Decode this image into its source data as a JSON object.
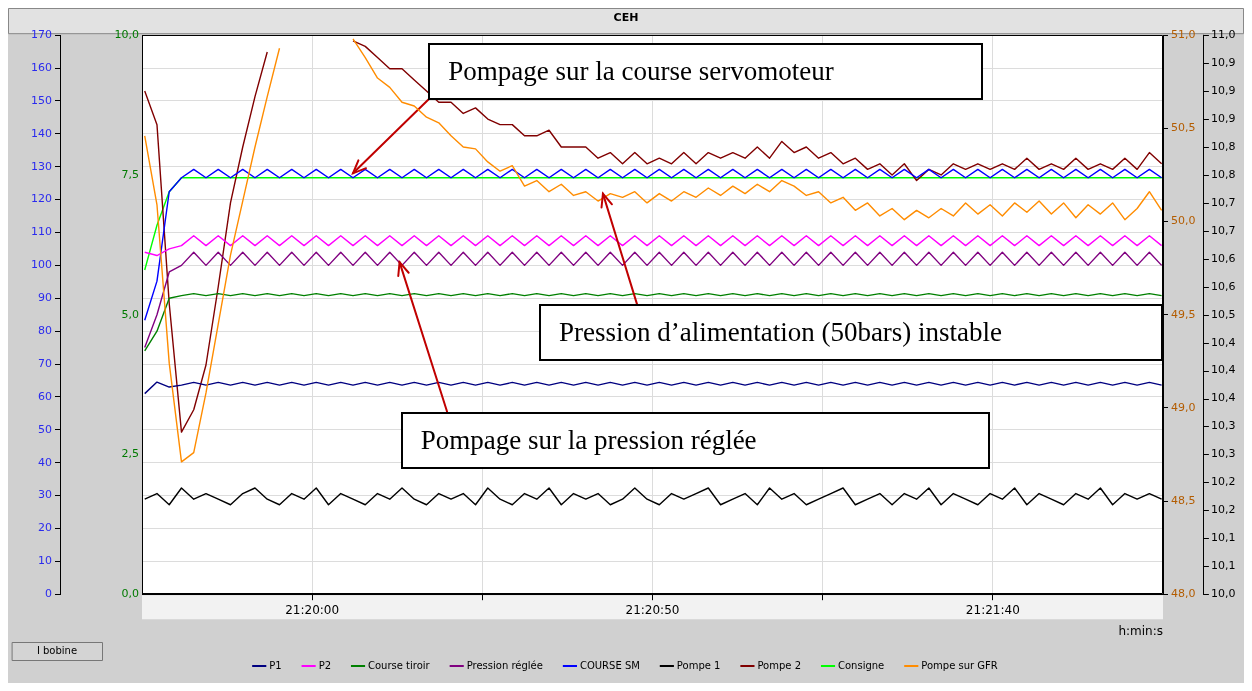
{
  "chart_data": [
    {
      "type": "line",
      "title": "CEH",
      "xlabel": "h:min:s",
      "annotations": [
        {
          "text": "Pompage sur la course servomoteur",
          "x": 21.335,
          "y": 128
        },
        {
          "text": "Pompage sur la pression réglée",
          "x": 21.3369,
          "y": 101
        },
        "I bobine"
      ],
      "xlim": [
        21.326389,
        21.368056
      ],
      "xticks": [
        {
          "value": 21.333333,
          "label": "21:20:00"
        },
        {
          "value": 21.340278,
          "label": null
        },
        {
          "value": 21.347222,
          "label": "21:20:50"
        },
        {
          "value": 21.354167,
          "label": null
        },
        {
          "value": 21.361111,
          "label": "21:21:40"
        }
      ],
      "ylim": [
        0,
        170
      ],
      "yticks": [
        0,
        10,
        20,
        30,
        40,
        50,
        60,
        70,
        80,
        90,
        100,
        110,
        120,
        130,
        140,
        150,
        160,
        170
      ],
      "y2lim": [
        0,
        10
      ],
      "y2ticks": [
        {
          "value": 0,
          "label": "0,0"
        },
        {
          "value": 2.5,
          "label": "2,5"
        },
        {
          "value": 5,
          "label": "5,0"
        },
        {
          "value": 7.5,
          "label": "7,5"
        },
        {
          "value": 10,
          "label": "10,0"
        }
      ],
      "y3lim": [
        10,
        11
      ],
      "y3ticks": [
        {
          "value": 10,
          "label": "10,0"
        },
        {
          "value": 10.05,
          "label": "10,1"
        },
        {
          "value": 10.1,
          "label": "10,1"
        },
        {
          "value": 10.15,
          "label": "10,2"
        },
        {
          "value": 10.2,
          "label": "10,2"
        },
        {
          "value": 10.25,
          "label": "10,3"
        },
        {
          "value": 10.3,
          "label": "10,3"
        },
        {
          "value": 10.35,
          "label": "10,4"
        },
        {
          "value": 10.4,
          "label": "10,4"
        },
        {
          "value": 10.45,
          "label": "10,4"
        },
        {
          "value": 10.5,
          "label": "10,5"
        },
        {
          "value": 10.55,
          "label": "10,6"
        },
        {
          "value": 10.6,
          "label": "10,6"
        },
        {
          "value": 10.65,
          "label": "10,7"
        },
        {
          "value": 10.7,
          "label": "10,7"
        },
        {
          "value": 10.75,
          "label": "10,8"
        },
        {
          "value": 10.8,
          "label": "10,8"
        },
        {
          "value": 10.85,
          "label": "10,9"
        },
        {
          "value": 10.9,
          "label": "10,9"
        },
        {
          "value": 10.95,
          "label": "10,9"
        },
        {
          "value": 11,
          "label": "11,0"
        }
      ],
      "grid": true,
      "legend": "bottom",
      "marker": "none",
      "line_style": "solid",
      "x": [
        21.3265,
        21.327,
        21.3275,
        21.328,
        21.3285,
        21.329,
        21.3295,
        21.33,
        21.3305,
        21.331,
        21.3315,
        21.332,
        21.3325,
        21.333,
        21.3335,
        21.334,
        21.3345,
        21.335,
        21.3355,
        21.336,
        21.3365,
        21.337,
        21.3375,
        21.338,
        21.3385,
        21.339,
        21.3395,
        21.34,
        21.3405,
        21.341,
        21.3415,
        21.342,
        21.3425,
        21.343,
        21.3435,
        21.344,
        21.3445,
        21.345,
        21.3455,
        21.346,
        21.3465,
        21.347,
        21.3475,
        21.348,
        21.3485,
        21.349,
        21.3495,
        21.35,
        21.3505,
        21.351,
        21.3515,
        21.352,
        21.3525,
        21.353,
        21.3535,
        21.354,
        21.3545,
        21.355,
        21.3555,
        21.356,
        21.3565,
        21.357,
        21.3575,
        21.358,
        21.3585,
        21.359,
        21.3595,
        21.36,
        21.3605,
        21.361,
        21.3615,
        21.362,
        21.3625,
        21.363,
        21.3635,
        21.364,
        21.3645,
        21.365,
        21.3655,
        21.366,
        21.3665,
        21.367,
        21.3675,
        21.368
      ],
      "series": [
        {
          "name": "P1",
          "color": "#000080",
          "values": [
            61,
            64.5,
            63,
            63.6,
            64.4,
            63.6,
            64.4,
            63.6,
            64.4,
            63.6,
            64.4,
            63.6,
            64.4,
            63.6,
            64.4,
            63.6,
            64.4,
            63.6,
            64.4,
            63.6,
            64.4,
            63.6,
            64.4,
            63.6,
            64.4,
            63.6,
            64.4,
            63.6,
            64.4,
            63.6,
            64.4,
            63.6,
            64.4,
            63.6,
            64.4,
            63.6,
            64.4,
            63.6,
            64.4,
            63.6,
            64.4,
            63.6,
            64.4,
            63.6,
            64.4,
            63.6,
            64.4,
            63.6,
            64.4,
            63.6,
            64.4,
            63.6,
            64.4,
            63.6,
            64.4,
            63.6,
            64.4,
            63.6,
            64.4,
            63.6,
            64.4,
            63.6,
            64.4,
            63.6,
            64.4,
            63.6,
            64.4,
            63.6,
            64.4,
            63.6,
            64.4,
            63.6,
            64.4,
            63.6,
            64.4,
            63.6,
            64.4,
            63.6,
            64.4,
            63.6,
            64.4,
            63.6,
            64.4,
            63.6
          ]
        },
        {
          "name": "P2",
          "color": "#ff00ff",
          "values": [
            104,
            103,
            105,
            106,
            109,
            106,
            109,
            106,
            109,
            106,
            109,
            106,
            109,
            106,
            109,
            106,
            109,
            106,
            109,
            106,
            109,
            106,
            109,
            106,
            109,
            106,
            109,
            106,
            109,
            106,
            109,
            106,
            109,
            106,
            109,
            106,
            109,
            106,
            109,
            106,
            109,
            106,
            109,
            106,
            109,
            106,
            109,
            106,
            109,
            106,
            109,
            106,
            109,
            106,
            109,
            106,
            109,
            106,
            109,
            106,
            109,
            106,
            109,
            106,
            109,
            106,
            109,
            106,
            109,
            106,
            109,
            106,
            109,
            106,
            109,
            106,
            109,
            106,
            109,
            106,
            109,
            106,
            109,
            106
          ]
        },
        {
          "name": "Course tiroir",
          "color": "#008000",
          "values": [
            74,
            80,
            90,
            90.8,
            91.4,
            90.8,
            91.4,
            90.8,
            91.4,
            90.8,
            91.4,
            90.8,
            91.4,
            90.8,
            91.4,
            90.8,
            91.4,
            90.8,
            91.4,
            90.8,
            91.4,
            90.8,
            91.4,
            90.8,
            91.4,
            90.8,
            91.4,
            90.8,
            91.4,
            90.8,
            91.4,
            90.8,
            91.4,
            90.8,
            91.4,
            90.8,
            91.4,
            90.8,
            91.4,
            90.8,
            91.4,
            90.8,
            91.4,
            90.8,
            91.4,
            90.8,
            91.4,
            90.8,
            91.4,
            90.8,
            91.4,
            90.8,
            91.4,
            90.8,
            91.4,
            90.8,
            91.4,
            90.8,
            91.4,
            90.8,
            91.4,
            90.8,
            91.4,
            90.8,
            91.4,
            90.8,
            91.4,
            90.8,
            91.4,
            90.8,
            91.4,
            90.8,
            91.4,
            90.8,
            91.4,
            90.8,
            91.4,
            90.8,
            91.4,
            90.8,
            91.4,
            90.8,
            91.4,
            90.8
          ]
        },
        {
          "name": "Pression réglée",
          "color": "#800080",
          "values": [
            75,
            85,
            98,
            100,
            104,
            100,
            104,
            100,
            104,
            100,
            104,
            100,
            104,
            100,
            104,
            100,
            104,
            100,
            104,
            100,
            104,
            100,
            104,
            100,
            104,
            100,
            104,
            100,
            104,
            100,
            104,
            100,
            104,
            100,
            104,
            100,
            104,
            100,
            104,
            100,
            104,
            100,
            104,
            100,
            104,
            100,
            104,
            100,
            104,
            100,
            104,
            100,
            104,
            100,
            104,
            100,
            104,
            100,
            104,
            100,
            104,
            100,
            104,
            100,
            104,
            100,
            104,
            100,
            104,
            100,
            104,
            100,
            104,
            100,
            104,
            100,
            104,
            100,
            104,
            100,
            104,
            100,
            104,
            100
          ]
        },
        {
          "name": "COURSE SM",
          "color": "#0000ff",
          "axis": "y2",
          "values": [
            4.9,
            5.6,
            7.2,
            7.45,
            7.6,
            7.45,
            7.6,
            7.45,
            7.6,
            7.45,
            7.6,
            7.45,
            7.6,
            7.45,
            7.6,
            7.45,
            7.6,
            7.45,
            7.6,
            7.45,
            7.6,
            7.45,
            7.6,
            7.45,
            7.6,
            7.45,
            7.6,
            7.45,
            7.6,
            7.45,
            7.6,
            7.45,
            7.6,
            7.45,
            7.6,
            7.45,
            7.6,
            7.45,
            7.6,
            7.45,
            7.6,
            7.45,
            7.6,
            7.45,
            7.6,
            7.45,
            7.6,
            7.45,
            7.6,
            7.45,
            7.6,
            7.45,
            7.6,
            7.45,
            7.6,
            7.45,
            7.6,
            7.45,
            7.6,
            7.45,
            7.6,
            7.45,
            7.6,
            7.45,
            7.6,
            7.45,
            7.6,
            7.45,
            7.6,
            7.45,
            7.6,
            7.45,
            7.6,
            7.45,
            7.6,
            7.45,
            7.6,
            7.45,
            7.6,
            7.45,
            7.6,
            7.45,
            7.6,
            7.45
          ]
        },
        {
          "name": "Pompe 1",
          "color": "#000000",
          "axis": "y3",
          "values": [
            10.17,
            10.18,
            10.16,
            10.19,
            10.17,
            10.18,
            10.17,
            10.16,
            10.18,
            10.19,
            10.17,
            10.16,
            10.18,
            10.17,
            10.19,
            10.16,
            10.18,
            10.17,
            10.16,
            10.18,
            10.17,
            10.19,
            10.17,
            10.16,
            10.18,
            10.17,
            10.18,
            10.16,
            10.19,
            10.17,
            10.16,
            10.18,
            10.17,
            10.19,
            10.16,
            10.18,
            10.17,
            10.18,
            10.16,
            10.17,
            10.19,
            10.17,
            10.16,
            10.18,
            10.17,
            10.18,
            10.19,
            10.16,
            10.17,
            10.18,
            10.16,
            10.19,
            10.17,
            10.18,
            10.16,
            10.17,
            10.18,
            10.19,
            10.16,
            10.17,
            10.18,
            10.16,
            10.18,
            10.17,
            10.19,
            10.16,
            10.18,
            10.17,
            10.16,
            10.18,
            10.17,
            10.19,
            10.16,
            10.18,
            10.17,
            10.16,
            10.18,
            10.17,
            10.19,
            10.16,
            10.18,
            10.17,
            10.18,
            10.17
          ]
        },
        {
          "name": "Pompe 2",
          "color": "#800000",
          "axis": "y3",
          "values": [
            10.9,
            10.84,
            10.52,
            10.29,
            10.33,
            10.41,
            10.55,
            10.7,
            10.8,
            10.89,
            10.97,
            null,
            null,
            null,
            null,
            null,
            null,
            10.99,
            10.98,
            10.96,
            10.94,
            10.94,
            10.92,
            10.9,
            10.88,
            10.88,
            10.86,
            10.87,
            10.85,
            10.84,
            10.84,
            10.82,
            10.82,
            10.83,
            10.8,
            10.8,
            10.8,
            10.78,
            10.79,
            10.77,
            10.79,
            10.77,
            10.78,
            10.77,
            10.79,
            10.77,
            10.79,
            10.78,
            10.79,
            10.78,
            10.8,
            10.78,
            10.81,
            10.79,
            10.8,
            10.78,
            10.79,
            10.77,
            10.78,
            10.76,
            10.77,
            10.75,
            10.77,
            10.74,
            10.76,
            10.75,
            10.77,
            10.76,
            10.77,
            10.76,
            10.77,
            10.76,
            10.78,
            10.76,
            10.77,
            10.76,
            10.78,
            10.76,
            10.77,
            10.76,
            10.78,
            10.76,
            10.79,
            10.77
          ]
        },
        {
          "name": "Consigne",
          "color": "#00ff00",
          "axis": "y2",
          "values": [
            5.8,
            6.6,
            7.2,
            7.45,
            7.45,
            7.45,
            7.45,
            7.45,
            7.45,
            7.45,
            7.45,
            7.45,
            7.45,
            7.45,
            7.45,
            7.45,
            7.45,
            7.45,
            7.45,
            7.45,
            7.45,
            7.45,
            7.45,
            7.45,
            7.45,
            7.45,
            7.45,
            7.45,
            7.45,
            7.45,
            7.45,
            7.45,
            7.45,
            7.45,
            7.45,
            7.45,
            7.45,
            7.45,
            7.45,
            7.45,
            7.45,
            7.45,
            7.45,
            7.45,
            7.45,
            7.45,
            7.45,
            7.45,
            7.45,
            7.45,
            7.45,
            7.45,
            7.45,
            7.45,
            7.45,
            7.45,
            7.45,
            7.45,
            7.45,
            7.45,
            7.45,
            7.45,
            7.45,
            7.45,
            7.45,
            7.45,
            7.45,
            7.45,
            7.45,
            7.45,
            7.45,
            7.45,
            7.45,
            7.45,
            7.45,
            7.45,
            7.45,
            7.45,
            7.45,
            7.45,
            7.45,
            7.45,
            7.45,
            7.45
          ]
        }
      ]
    },
    {
      "type": "line",
      "tick_labels": "y",
      "marker": "none",
      "line_style": "solid",
      "annotations": [
        {
          "text": "Pression d’alimentation (50bars) instable",
          "x": 21.3452,
          "y": 50.15
        }
      ],
      "xlim": [
        21.326389,
        21.368056
      ],
      "ylim": [
        48,
        51
      ],
      "yticks": [
        {
          "value": 48,
          "label": "48,0"
        },
        {
          "value": 48.5,
          "label": "48,5"
        },
        {
          "value": 49,
          "label": "49,0"
        },
        {
          "value": 49.5,
          "label": "49,5"
        },
        {
          "value": 50,
          "label": "50,0"
        },
        {
          "value": 50.5,
          "label": "50,5"
        },
        {
          "value": 51,
          "label": "51,0"
        }
      ],
      "x": [
        21.3265,
        21.327,
        21.3275,
        21.328,
        21.3285,
        21.329,
        21.3295,
        21.33,
        21.3305,
        21.331,
        21.3315,
        21.332,
        21.3325,
        21.333,
        21.3335,
        21.334,
        21.3345,
        21.335,
        21.3355,
        21.336,
        21.3365,
        21.337,
        21.3375,
        21.338,
        21.3385,
        21.339,
        21.3395,
        21.34,
        21.3405,
        21.341,
        21.3415,
        21.342,
        21.3425,
        21.343,
        21.3435,
        21.344,
        21.3445,
        21.345,
        21.3455,
        21.346,
        21.3465,
        21.347,
        21.3475,
        21.348,
        21.3485,
        21.349,
        21.3495,
        21.35,
        21.3505,
        21.351,
        21.3515,
        21.352,
        21.3525,
        21.353,
        21.3535,
        21.354,
        21.3545,
        21.355,
        21.3555,
        21.356,
        21.3565,
        21.357,
        21.3575,
        21.358,
        21.3585,
        21.359,
        21.3595,
        21.36,
        21.3605,
        21.361,
        21.3615,
        21.362,
        21.3625,
        21.363,
        21.3635,
        21.364,
        21.3645,
        21.365,
        21.3655,
        21.366,
        21.3665,
        21.367,
        21.3675,
        21.368
      ],
      "series": [
        {
          "name": "Pompe sur GFR",
          "color": "#ff8c00",
          "values": [
            50.46,
            50.09,
            49.24,
            48.71,
            48.76,
            49.08,
            49.45,
            49.82,
            50.11,
            50.4,
            50.67,
            50.93,
            null,
            null,
            null,
            null,
            null,
            50.98,
            50.88,
            50.77,
            50.72,
            50.64,
            50.62,
            50.56,
            50.53,
            50.46,
            50.4,
            50.39,
            50.32,
            50.27,
            50.3,
            50.19,
            50.22,
            50.16,
            50.2,
            50.14,
            50.16,
            50.11,
            50.15,
            50.13,
            50.16,
            50.1,
            50.15,
            50.11,
            50.16,
            50.13,
            50.18,
            50.14,
            50.19,
            50.15,
            50.2,
            50.16,
            50.22,
            50.19,
            50.14,
            50.16,
            50.1,
            50.13,
            50.06,
            50.1,
            50.03,
            50.07,
            50.01,
            50.06,
            50.02,
            50.07,
            50.03,
            50.1,
            50.04,
            50.09,
            50.03,
            50.1,
            50.05,
            50.11,
            50.04,
            50.1,
            50.02,
            50.09,
            50.04,
            50.1,
            50.01,
            50.07,
            50.16,
            50.06
          ]
        }
      ]
    }
  ]
}
